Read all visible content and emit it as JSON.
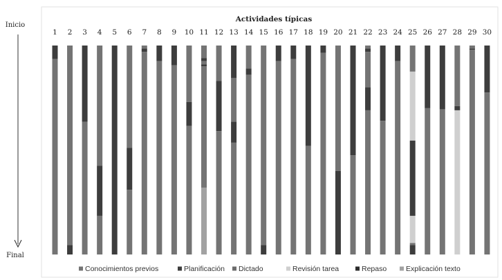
{
  "chart_data": {
    "type": "bar",
    "orientation": "vertical-stacked-sequence",
    "title": "Actividades típicas",
    "start_label": "Inicio",
    "end_label": "Final",
    "categories": [
      "1",
      "2",
      "3",
      "4",
      "5",
      "6",
      "7",
      "8",
      "9",
      "10",
      "11",
      "12",
      "13",
      "14",
      "15",
      "16",
      "17",
      "18",
      "19",
      "20",
      "21",
      "22",
      "23",
      "24",
      "25",
      "26",
      "27",
      "28",
      "29",
      "30"
    ],
    "legend_position": "bottom",
    "grid": false,
    "legend": [
      {
        "name": "Conocimientos previos",
        "color": "#747474"
      },
      {
        "name": "Planificación",
        "color": "#3d3d3d"
      },
      {
        "name": "Dictado",
        "color": "#6c6c6c"
      },
      {
        "name": "Revisión tarea",
        "color": "#cfcfcf"
      },
      {
        "name": "Repaso",
        "color": "#2c2c2c"
      },
      {
        "name": "Explicación texto",
        "color": "#a2a2a2"
      }
    ],
    "bars": [
      {
        "segments": [
          {
            "cat": "Planificación",
            "v": 0.065
          },
          {
            "cat": "Conocimientos previos",
            "v": 0.935
          }
        ]
      },
      {
        "segments": [
          {
            "cat": "Conocimientos previos",
            "v": 0.955
          },
          {
            "cat": "Planificación",
            "v": 0.045
          }
        ]
      },
      {
        "segments": [
          {
            "cat": "Planificación",
            "v": 0.365
          },
          {
            "cat": "Conocimientos previos",
            "v": 0.635
          }
        ]
      },
      {
        "segments": [
          {
            "cat": "Conocimientos previos",
            "v": 0.575
          },
          {
            "cat": "Planificación",
            "v": 0.24
          },
          {
            "cat": "Conocimientos previos",
            "v": 0.185
          }
        ]
      },
      {
        "segments": [
          {
            "cat": "Planificación",
            "v": 1.0
          }
        ]
      },
      {
        "segments": [
          {
            "cat": "Conocimientos previos",
            "v": 0.49
          },
          {
            "cat": "Planificación",
            "v": 0.2
          },
          {
            "cat": "Conocimientos previos",
            "v": 0.31
          }
        ]
      },
      {
        "segments": [
          {
            "cat": "Conocimientos previos",
            "v": 0.015
          },
          {
            "cat": "Planificación",
            "v": 0.015
          },
          {
            "cat": "Conocimientos previos",
            "v": 0.97
          }
        ]
      },
      {
        "segments": [
          {
            "cat": "Planificación",
            "v": 0.075
          },
          {
            "cat": "Conocimientos previos",
            "v": 0.925
          }
        ]
      },
      {
        "segments": [
          {
            "cat": "Planificación",
            "v": 0.095
          },
          {
            "cat": "Conocimientos previos",
            "v": 0.905
          }
        ]
      },
      {
        "segments": [
          {
            "cat": "Conocimientos previos",
            "v": 0.27
          },
          {
            "cat": "Planificación",
            "v": 0.115
          },
          {
            "cat": "Conocimientos previos",
            "v": 0.615
          }
        ]
      },
      {
        "segments": [
          {
            "cat": "Conocimientos previos",
            "v": 0.06
          },
          {
            "cat": "Planificación",
            "v": 0.015
          },
          {
            "cat": "Conocimientos previos",
            "v": 0.015
          },
          {
            "cat": "Planificación",
            "v": 0.01
          },
          {
            "cat": "Conocimientos previos",
            "v": 0.58
          },
          {
            "cat": "Explicación texto",
            "v": 0.32
          }
        ]
      },
      {
        "segments": [
          {
            "cat": "Conocimientos previos",
            "v": 0.17
          },
          {
            "cat": "Planificación",
            "v": 0.24
          },
          {
            "cat": "Conocimientos previos",
            "v": 0.59
          }
        ]
      },
      {
        "segments": [
          {
            "cat": "Planificación",
            "v": 0.155
          },
          {
            "cat": "Conocimientos previos",
            "v": 0.21
          },
          {
            "cat": "Planificación",
            "v": 0.1
          },
          {
            "cat": "Conocimientos previos",
            "v": 0.535
          }
        ]
      },
      {
        "segments": [
          {
            "cat": "Conocimientos previos",
            "v": 0.11
          },
          {
            "cat": "Planificación",
            "v": 0.03
          },
          {
            "cat": "Conocimientos previos",
            "v": 0.86
          }
        ]
      },
      {
        "segments": [
          {
            "cat": "Conocimientos previos",
            "v": 0.955
          },
          {
            "cat": "Planificación",
            "v": 0.045
          }
        ]
      },
      {
        "segments": [
          {
            "cat": "Planificación",
            "v": 0.075
          },
          {
            "cat": "Conocimientos previos",
            "v": 0.925
          }
        ]
      },
      {
        "segments": [
          {
            "cat": "Planificación",
            "v": 0.065
          },
          {
            "cat": "Conocimientos previos",
            "v": 0.935
          }
        ]
      },
      {
        "segments": [
          {
            "cat": "Planificación",
            "v": 0.48
          },
          {
            "cat": "Conocimientos previos",
            "v": 0.52
          }
        ]
      },
      {
        "segments": [
          {
            "cat": "Planificación",
            "v": 0.035
          },
          {
            "cat": "Conocimientos previos",
            "v": 0.965
          }
        ]
      },
      {
        "segments": [
          {
            "cat": "Conocimientos previos",
            "v": 0.6
          },
          {
            "cat": "Planificación",
            "v": 0.4
          }
        ]
      },
      {
        "segments": [
          {
            "cat": "Planificación",
            "v": 0.525
          },
          {
            "cat": "Conocimientos previos",
            "v": 0.475
          }
        ]
      },
      {
        "segments": [
          {
            "cat": "Conocimientos previos",
            "v": 0.015
          },
          {
            "cat": "Planificación",
            "v": 0.015
          },
          {
            "cat": "Conocimientos previos",
            "v": 0.17
          },
          {
            "cat": "Planificación",
            "v": 0.11
          },
          {
            "cat": "Conocimientos previos",
            "v": 0.69
          }
        ]
      },
      {
        "segments": [
          {
            "cat": "Planificación",
            "v": 0.36
          },
          {
            "cat": "Conocimientos previos",
            "v": 0.64
          }
        ]
      },
      {
        "segments": [
          {
            "cat": "Planificación",
            "v": 0.075
          },
          {
            "cat": "Conocimientos previos",
            "v": 0.925
          }
        ]
      },
      {
        "segments": [
          {
            "cat": "Conocimientos previos",
            "v": 0.125
          },
          {
            "cat": "Revisión tarea",
            "v": 0.33
          },
          {
            "cat": "Planificación",
            "v": 0.36
          },
          {
            "cat": "Revisión tarea",
            "v": 0.13
          },
          {
            "cat": "Conocimientos previos",
            "v": 0.01
          },
          {
            "cat": "Planificación",
            "v": 0.045
          }
        ]
      },
      {
        "segments": [
          {
            "cat": "Planificación",
            "v": 0.3
          },
          {
            "cat": "Conocimientos previos",
            "v": 0.7
          }
        ]
      },
      {
        "segments": [
          {
            "cat": "Planificación",
            "v": 0.305
          },
          {
            "cat": "Conocimientos previos",
            "v": 0.695
          }
        ]
      },
      {
        "segments": [
          {
            "cat": "Conocimientos previos",
            "v": 0.29
          },
          {
            "cat": "Planificación",
            "v": 0.02
          },
          {
            "cat": "Revisión tarea",
            "v": 0.69
          }
        ]
      },
      {
        "segments": [
          {
            "cat": "Conocimientos previos",
            "v": 0.015
          },
          {
            "cat": "Planificación",
            "v": 0.005
          },
          {
            "cat": "Conocimientos previos",
            "v": 0.98
          }
        ]
      },
      {
        "segments": [
          {
            "cat": "Planificación",
            "v": 0.225
          },
          {
            "cat": "Conocimientos previos",
            "v": 0.775
          }
        ]
      }
    ]
  }
}
